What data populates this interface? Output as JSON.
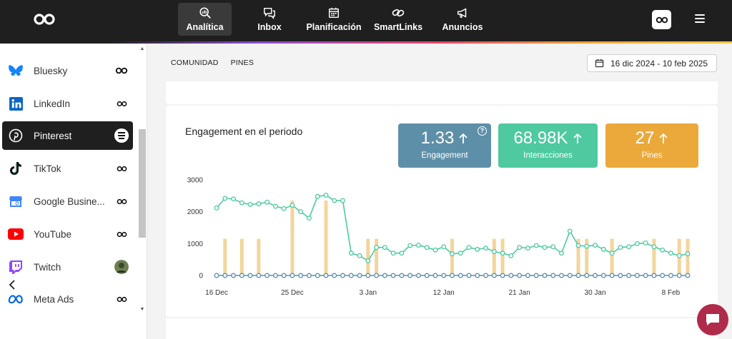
{
  "nav": {
    "items": [
      {
        "label": "Analítica",
        "icon": "analytics-icon",
        "active": true
      },
      {
        "label": "Inbox",
        "icon": "inbox-icon",
        "active": false
      },
      {
        "label": "Planificación",
        "icon": "calendar-icon",
        "active": false
      },
      {
        "label": "SmartLinks",
        "icon": "link-icon",
        "active": false
      },
      {
        "label": "Anuncios",
        "icon": "megaphone-icon",
        "active": false
      }
    ]
  },
  "sidebar": {
    "items": [
      {
        "label": "Bluesky",
        "icon": "bluesky-icon",
        "color": "#1185fe"
      },
      {
        "label": "LinkedIn",
        "icon": "linkedin-icon",
        "color": "#0a66c2"
      },
      {
        "label": "Pinterest",
        "icon": "pinterest-icon",
        "color": "#ffffff",
        "active": true
      },
      {
        "label": "TikTok",
        "icon": "tiktok-icon",
        "color": "#000000"
      },
      {
        "label": "Google Busine...",
        "icon": "google-business-icon",
        "color": "#4285f4"
      },
      {
        "label": "YouTube",
        "icon": "youtube-icon",
        "color": "#ff0000"
      },
      {
        "label": "Twitch",
        "icon": "twitch-icon",
        "color": "#9146ff"
      },
      {
        "label": "Meta Ads",
        "icon": "meta-icon",
        "color": "#0668e1"
      }
    ]
  },
  "tabs": [
    "COMUNIDAD",
    "PINES"
  ],
  "date_range": "16 dic 2024 - 10 feb 2025",
  "card": {
    "title": "Engagement en el periodo",
    "kpis": [
      {
        "value": "1.33",
        "label": "Engagement",
        "color": "#5e8fa8",
        "help": "?"
      },
      {
        "value": "68.98K",
        "label": "Interacciones",
        "color": "#4ec9a0"
      },
      {
        "value": "27",
        "label": "Pines",
        "color": "#eaa93a"
      }
    ]
  },
  "chart_data": {
    "type": "line",
    "x_ticks": [
      "16 Dec",
      "25 Dec",
      "3 Jan",
      "12 Jan",
      "21 Jan",
      "30 Jan",
      "8 Feb"
    ],
    "y_ticks": [
      "0",
      "1000",
      "2000",
      "3000"
    ],
    "ylim": [
      0,
      3000
    ],
    "x": [
      "2024-12-16",
      "2024-12-17",
      "2024-12-18",
      "2024-12-19",
      "2024-12-20",
      "2024-12-21",
      "2024-12-22",
      "2024-12-23",
      "2024-12-24",
      "2024-12-25",
      "2024-12-26",
      "2024-12-27",
      "2024-12-28",
      "2024-12-29",
      "2024-12-30",
      "2024-12-31",
      "2025-01-01",
      "2025-01-02",
      "2025-01-03",
      "2025-01-04",
      "2025-01-05",
      "2025-01-06",
      "2025-01-07",
      "2025-01-08",
      "2025-01-09",
      "2025-01-10",
      "2025-01-11",
      "2025-01-12",
      "2025-01-13",
      "2025-01-14",
      "2025-01-15",
      "2025-01-16",
      "2025-01-17",
      "2025-01-18",
      "2025-01-19",
      "2025-01-20",
      "2025-01-21",
      "2025-01-22",
      "2025-01-23",
      "2025-01-24",
      "2025-01-25",
      "2025-01-26",
      "2025-01-27",
      "2025-01-28",
      "2025-01-29",
      "2025-01-30",
      "2025-01-31",
      "2025-02-01",
      "2025-02-02",
      "2025-02-03",
      "2025-02-04",
      "2025-02-05",
      "2025-02-06",
      "2025-02-07",
      "2025-02-08",
      "2025-02-09",
      "2025-02-10"
    ],
    "series": [
      {
        "color": "#4ec9a0",
        "render": "line",
        "values": [
          2120,
          2420,
          2400,
          2280,
          2230,
          2250,
          2300,
          2170,
          2100,
          2200,
          2000,
          1800,
          2480,
          2520,
          2350,
          2350,
          700,
          620,
          460,
          880,
          880,
          700,
          700,
          940,
          950,
          880,
          800,
          900,
          680,
          700,
          880,
          820,
          860,
          750,
          700,
          620,
          880,
          860,
          940,
          880,
          900,
          700,
          1390,
          940,
          920,
          950,
          820,
          700,
          880,
          900,
          1000,
          1020,
          900,
          800,
          700,
          620,
          680
        ]
      },
      {
        "color": "#f3d59c",
        "render": "bar",
        "values": [
          0,
          1150,
          0,
          1150,
          0,
          1150,
          0,
          0,
          0,
          2350,
          0,
          0,
          0,
          2350,
          0,
          0,
          0,
          0,
          1150,
          1150,
          0,
          0,
          0,
          0,
          0,
          0,
          0,
          0,
          1150,
          0,
          0,
          0,
          0,
          1150,
          1150,
          0,
          0,
          0,
          0,
          0,
          0,
          0,
          0,
          1150,
          1150,
          0,
          0,
          1150,
          0,
          0,
          0,
          0,
          1150,
          0,
          0,
          1150,
          1150
        ]
      },
      {
        "color": "#5e8fa8",
        "render": "line",
        "values": [
          0,
          0,
          0,
          0,
          0,
          0,
          0,
          0,
          0,
          0,
          0,
          0,
          0,
          0,
          0,
          0,
          0,
          0,
          0,
          0,
          0,
          0,
          0,
          0,
          0,
          0,
          0,
          0,
          0,
          0,
          0,
          0,
          0,
          0,
          0,
          0,
          0,
          0,
          0,
          0,
          0,
          0,
          0,
          0,
          0,
          0,
          0,
          0,
          0,
          0,
          0,
          0,
          0,
          0,
          0,
          0,
          0
        ]
      }
    ]
  }
}
